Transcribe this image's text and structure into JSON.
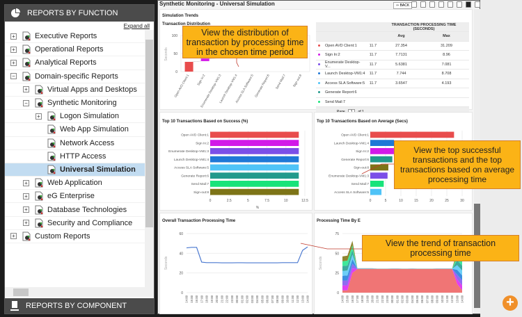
{
  "sidebar": {
    "title": "REPORTS BY FUNCTION",
    "expand_all": "Expand all",
    "footer": "REPORTS BY COMPONENT",
    "items": [
      {
        "label": "Executive Reports",
        "level": 0,
        "toggle": "+"
      },
      {
        "label": "Operational Reports",
        "level": 0,
        "toggle": "+"
      },
      {
        "label": "Analytical Reports",
        "level": 0,
        "toggle": "+"
      },
      {
        "label": "Domain-specific Reports",
        "level": 0,
        "toggle": "-"
      },
      {
        "label": "Virtual Apps and Desktops",
        "level": 1,
        "toggle": "+"
      },
      {
        "label": "Synthetic Monitoring",
        "level": 1,
        "toggle": "-"
      },
      {
        "label": "Logon Simulation",
        "level": 2,
        "toggle": "+"
      },
      {
        "label": "Web App Simulation",
        "level": 2,
        "toggle": ""
      },
      {
        "label": "Network Access",
        "level": 2,
        "toggle": ""
      },
      {
        "label": "HTTP Access",
        "level": 2,
        "toggle": ""
      },
      {
        "label": "Universal Simulation",
        "level": 2,
        "toggle": "",
        "selected": true
      },
      {
        "label": "Web Application",
        "level": 1,
        "toggle": "+"
      },
      {
        "label": "eG Enterprise",
        "level": 1,
        "toggle": "+"
      },
      {
        "label": "Database Technologies",
        "level": 1,
        "toggle": "+"
      },
      {
        "label": "Security and Compliance",
        "level": 1,
        "toggle": "+"
      },
      {
        "label": "Custom Reports",
        "level": 0,
        "toggle": "+"
      }
    ]
  },
  "main": {
    "title": "Synthetic Monitoring - Universal Simulation",
    "back": "⇦ BACK",
    "section": "Simulation Trends",
    "toolbar_icons": [
      "pdf-icon",
      "print-icon",
      "export-icon",
      "zoom-icon",
      "mail-icon",
      "share-icon",
      "favorite-star-icon",
      "schedule-icon"
    ],
    "table": {
      "group_header": "TRANSACTION PROCESSING TIME (SECONDS)",
      "avg": "Avg",
      "max": "Max",
      "rows": [
        {
          "name": "Open AVD Client:1",
          "success": "11.7",
          "avg": "27.354",
          "max": "31.209",
          "color": "#e84c4c"
        },
        {
          "name": "Sign In:2",
          "success": "11.7",
          "avg": "7.7131",
          "max": "8.96",
          "color": "#d21ae8"
        },
        {
          "name": "Enumerate Desktop-V...",
          "success": "11.7",
          "avg": "5.6381",
          "max": "7.081",
          "color": "#7b4fe8"
        },
        {
          "name": "Launch Desktop-VM1:4",
          "success": "11.7",
          "avg": "7.744",
          "max": "8.708",
          "color": "#1f78d6"
        },
        {
          "name": "Access SLA Software:5",
          "success": "11.7",
          "avg": "3.6547",
          "max": "4.193",
          "color": "#4fc3f7"
        },
        {
          "name": "Generate Report:6",
          "color": "#229a8c"
        },
        {
          "name": "Send Mail:7",
          "color": "#18e37a"
        }
      ],
      "page_label": "Page",
      "page": "1",
      "of": "of 1"
    }
  },
  "callouts": [
    "View the distribution of transaction by processing time in the chosen time period",
    "View the top successful transactions and the top transactions based on average processing time",
    "View the trend of transaction processing time"
  ],
  "chart_data": [
    {
      "id": "dist",
      "type": "bar",
      "title": "Transaction Distribution",
      "ylabel": "Seconds",
      "ylim": [
        0,
        100
      ],
      "yticks": [
        0,
        50,
        100
      ],
      "categories": [
        "Open AVD Client:1",
        "Sign In:2",
        "Enumerate Desktop-VM1:3",
        "Launch Desktop-VM1:4",
        "Access SLA Software:5",
        "Generate Report:6",
        "Send Mail:7",
        "Sign out:8"
      ],
      "ranges": [
        [
          0,
          27
        ],
        [
          29,
          36
        ],
        [
          37,
          41
        ],
        [
          43,
          50
        ],
        [
          49,
          52
        ],
        [
          54,
          60
        ],
        [
          60,
          64
        ],
        [
          64,
          69
        ]
      ],
      "colors": [
        "#e84c4c",
        "#d21ae8",
        "#7b4fe8",
        "#1f78d6",
        "#4fc3f7",
        "#229a8c",
        "#18e37a",
        "#7d7417"
      ]
    },
    {
      "id": "success",
      "type": "bar",
      "orientation": "horizontal",
      "title": "Top 10 Transactions Based on Success (%)",
      "xlabel": "%",
      "xlim": [
        0,
        12.5
      ],
      "xticks": [
        0,
        2.5,
        5,
        7.5,
        10,
        12.5
      ],
      "categories": [
        "Open AVD Client:1",
        "Sign In:2",
        "Enumerate Desktop-VM1:3",
        "Launch Desktop-VM1:4",
        "Access SLA Software:5",
        "Generate Report:6",
        "Send Mail:7",
        "Sign-out:8"
      ],
      "values": [
        11.7,
        11.7,
        11.7,
        11.7,
        11.7,
        11.7,
        11.7,
        11.7
      ],
      "colors": [
        "#e84c4c",
        "#d21ae8",
        "#7b4fe8",
        "#1f78d6",
        "#4fc3f7",
        "#229a8c",
        "#18e37a",
        "#7d7417"
      ]
    },
    {
      "id": "average",
      "type": "bar",
      "orientation": "horizontal",
      "title": "Top 10 Transactions Based on Average (Secs)",
      "xlim": [
        0,
        30
      ],
      "xticks": [
        0,
        5,
        10,
        15,
        20,
        25,
        30
      ],
      "categories": [
        "Open AVD Client:1",
        "Launch Desktop-VM1:4",
        "Sign In:2",
        "Generate Report:6",
        "Sign-out:8",
        "Enumerate Desktop-VM1:3",
        "Send Mail:7",
        "Access SLA Software:5"
      ],
      "values": [
        27.354,
        7.744,
        7.7131,
        7.2,
        5.9,
        5.6381,
        4.4,
        3.6547
      ],
      "colors": [
        "#e84c4c",
        "#1f78d6",
        "#d21ae8",
        "#229a8c",
        "#7d7417",
        "#7b4fe8",
        "#18e37a",
        "#4fc3f7"
      ]
    },
    {
      "id": "overall",
      "type": "line",
      "title": "Overall Transaction Processing Time",
      "ylabel": "Seconds",
      "ylim": [
        0,
        60
      ],
      "yticks": [
        0,
        20,
        40,
        60
      ],
      "x": [
        "14:00",
        "15:00",
        "16:00",
        "17:00",
        "18:00",
        "19:00",
        "20:00",
        "21:00",
        "22:00",
        "23:00",
        "00:00",
        "01:00",
        "02:00",
        "03:00",
        "04:00",
        "05:00",
        "06:00",
        "07:00",
        "08:00",
        "09:00",
        "10:00",
        "11:00",
        "12:00",
        "13:00",
        "14:00"
      ],
      "values": [
        45.5,
        46,
        46,
        31,
        30.5,
        30.5,
        30.5,
        30.3,
        30.3,
        30.3,
        30.4,
        30.4,
        30.3,
        30.3,
        30.3,
        30.3,
        30.3,
        30.3,
        30.3,
        30.5,
        30.5,
        30.5,
        30.5,
        43,
        46.5
      ],
      "color": "#4a78d0"
    },
    {
      "id": "bytx",
      "type": "area",
      "stacked": true,
      "title": "Processing Time By E",
      "ylabel": "Seconds",
      "ylim": [
        0,
        75
      ],
      "yticks": [
        0,
        25,
        50,
        75
      ],
      "x": [
        "14:00",
        "15:00",
        "16:00",
        "17:00",
        "18:00",
        "19:00",
        "20:00",
        "21:00",
        "22:00",
        "23:00",
        "00:00",
        "01:00",
        "02:00",
        "03:00",
        "04:00",
        "05:00",
        "06:00",
        "07:00",
        "08:00",
        "09:00",
        "10:00",
        "11:00",
        "12:00",
        "13:00",
        "14:00"
      ],
      "base": [
        3,
        3,
        25,
        30,
        30,
        30,
        30,
        30,
        30,
        30,
        30,
        30,
        30,
        30,
        30,
        30,
        30,
        30,
        30,
        30,
        30,
        30,
        30,
        11,
        3
      ],
      "totals": [
        46,
        47,
        66,
        31,
        31,
        31,
        31,
        30.5,
        30.5,
        30.5,
        30.8,
        30.8,
        30.5,
        30.5,
        30.8,
        30.5,
        30.5,
        30.5,
        30.5,
        30.8,
        30.8,
        30.8,
        30.8,
        53,
        47
      ],
      "colors": [
        "#f07575",
        "#e040f0",
        "#8f6cf0",
        "#3b8ee0",
        "#6ccff7",
        "#3bab9d",
        "#3ee89a",
        "#8f8630"
      ]
    }
  ]
}
